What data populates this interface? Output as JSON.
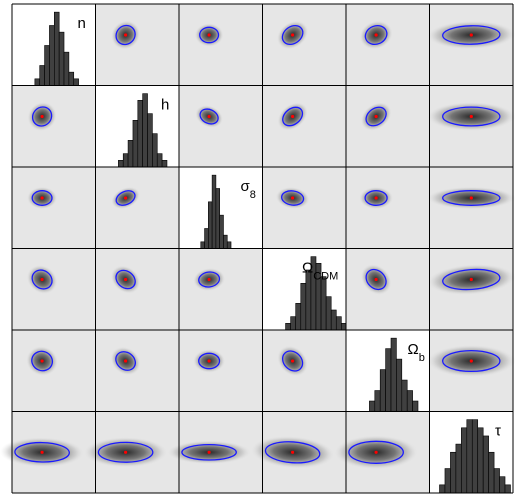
{
  "chart_data": {
    "type": "corner",
    "parameters": [
      {
        "key": "n",
        "label": "n",
        "subscript": ""
      },
      {
        "key": "h",
        "label": "h",
        "subscript": ""
      },
      {
        "key": "sigma8",
        "label": "σ",
        "subscript": "8"
      },
      {
        "key": "omega_cdm",
        "label": "Ω",
        "subscript": "CDM"
      },
      {
        "key": "omega_b",
        "label": "Ω",
        "subscript": "b"
      },
      {
        "key": "tau",
        "label": "τ",
        "subscript": ""
      }
    ],
    "histograms": [
      [
        0,
        1,
        3,
        6,
        9,
        11,
        8,
        5,
        2,
        1,
        0
      ],
      [
        0,
        1,
        2,
        4,
        7,
        10,
        11,
        8,
        5,
        2,
        1,
        0
      ],
      [
        0,
        1,
        3,
        7,
        11,
        9,
        5,
        2,
        1,
        0
      ],
      [
        0,
        1,
        2,
        4,
        7,
        9,
        11,
        10,
        8,
        5,
        3,
        2,
        1,
        0
      ],
      [
        0,
        1,
        2,
        4,
        6,
        7,
        5,
        3,
        2,
        1,
        0
      ],
      [
        1,
        3,
        5,
        6,
        8,
        9,
        9,
        8,
        7,
        5,
        3,
        2,
        1
      ]
    ],
    "correlations": [
      [
        1.0,
        0.1,
        0.0,
        0.3,
        0.1,
        0.05
      ],
      [
        0.1,
        1.0,
        0.3,
        0.5,
        0.4,
        0.0
      ],
      [
        0.0,
        0.3,
        1.0,
        -0.1,
        0.0,
        0.0
      ],
      [
        0.3,
        0.5,
        -0.1,
        1.0,
        -0.45,
        0.15
      ],
      [
        0.1,
        0.4,
        0.0,
        -0.45,
        1.0,
        0.0
      ],
      [
        0.05,
        0.0,
        0.0,
        0.15,
        0.0,
        1.0
      ]
    ],
    "spreads": [
      0.9,
      0.9,
      0.7,
      1.0,
      1.0,
      2.6
    ],
    "colors": {
      "contour": "#1a1aff",
      "peak": "#ff0000",
      "histogram_bar": "#404040",
      "density_dark": "#2a2a2a",
      "panel_background": "#e6e6e6",
      "grid_line": "#000000"
    },
    "grid": "6x6",
    "lower_and_upper_panels": "2D marginal densities with 68% contour",
    "diagonal_panels": "1D histograms"
  }
}
